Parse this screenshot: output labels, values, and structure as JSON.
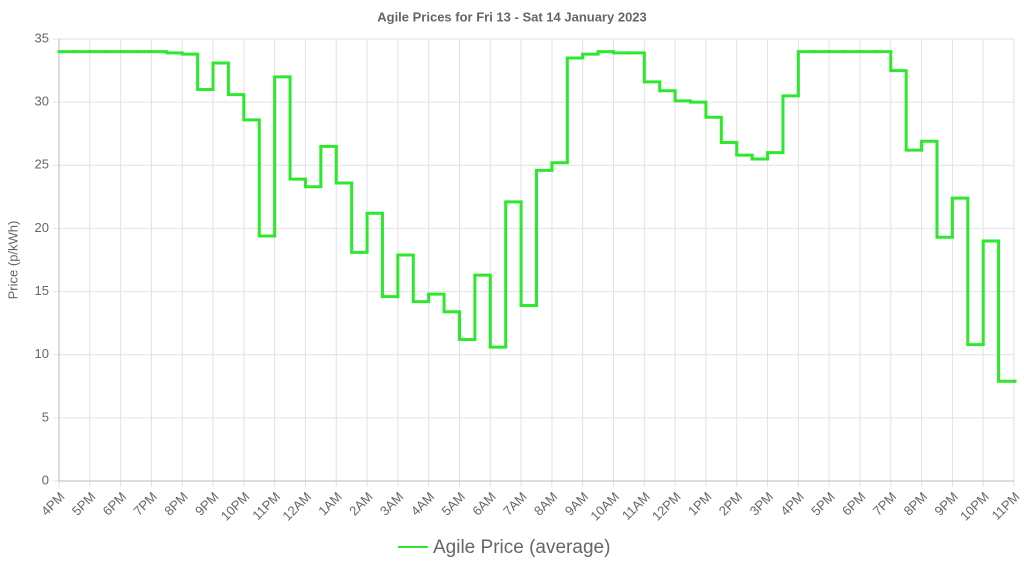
{
  "chart_data": {
    "type": "step-line",
    "title": "Agile Prices for Fri 13 - Sat 14 January 2023",
    "y_label": "Price (p/kWh)",
    "categories": [
      "4PM",
      null,
      "5PM",
      null,
      "6PM",
      null,
      "7PM",
      null,
      "8PM",
      null,
      "9PM",
      null,
      "10PM",
      null,
      "11PM",
      null,
      "12AM",
      null,
      "1AM",
      null,
      "2AM",
      null,
      "3AM",
      null,
      "4AM",
      null,
      "5AM",
      null,
      "6AM",
      null,
      "7AM",
      null,
      "8AM",
      null,
      "9AM",
      null,
      "10AM",
      null,
      "11AM",
      null,
      "12PM",
      null,
      "1PM",
      null,
      "2PM",
      null,
      "3PM",
      null,
      "4PM",
      null,
      "5PM",
      null,
      "6PM",
      null,
      "7PM",
      null,
      "8PM",
      null,
      "9PM",
      null,
      "10PM",
      null,
      "11PM"
    ],
    "series": [
      {
        "name": "Agile Price (average)",
        "color": "#2ee82e",
        "values": [
          34.0,
          34.0,
          34.0,
          34.0,
          34.0,
          34.0,
          34.0,
          33.9,
          33.8,
          31.0,
          33.1,
          30.6,
          28.6,
          19.4,
          32.0,
          23.9,
          23.3,
          26.5,
          23.6,
          18.1,
          21.2,
          14.6,
          17.9,
          14.2,
          14.8,
          13.4,
          11.2,
          16.3,
          10.6,
          22.1,
          13.9,
          24.6,
          25.2,
          33.5,
          33.8,
          34.0,
          33.9,
          33.9,
          31.6,
          30.9,
          30.1,
          30.0,
          28.8,
          26.8,
          25.8,
          25.5,
          26.0,
          30.5,
          34.0,
          34.0,
          34.0,
          34.0,
          34.0,
          34.0,
          32.5,
          26.2,
          26.9,
          19.3,
          22.4,
          10.8,
          19.0,
          7.9,
          7.9
        ]
      }
    ],
    "ylim": [
      0,
      35
    ],
    "yticks": [
      0,
      5,
      10,
      15,
      20,
      25,
      30,
      35
    ],
    "grid": true,
    "legend": "bottom"
  }
}
